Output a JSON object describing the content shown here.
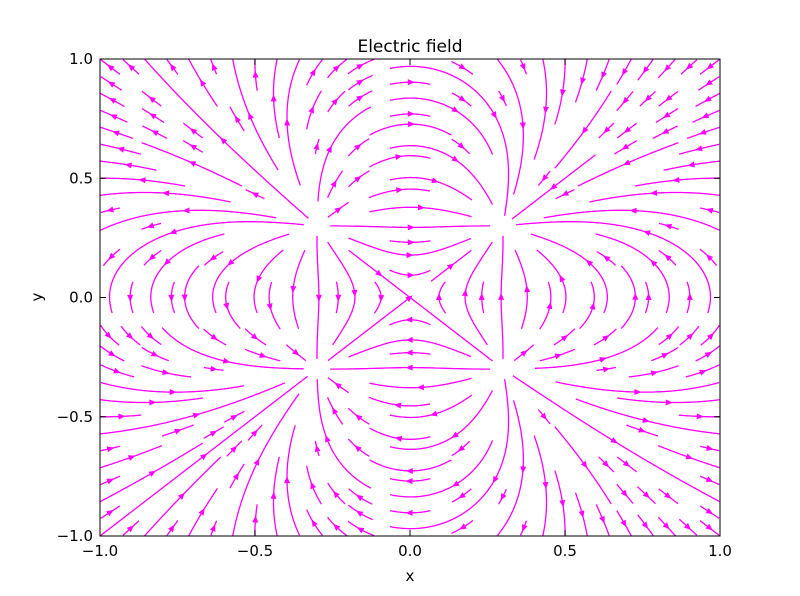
{
  "chart_data": {
    "type": "streamplot",
    "title": "Electric field",
    "xlabel": "x",
    "ylabel": "y",
    "xlim": [
      -1.0,
      1.0
    ],
    "ylim": [
      -1.0,
      1.0
    ],
    "xticks": [
      -1.0,
      -0.5,
      0.0,
      0.5,
      1.0
    ],
    "yticks": [
      -1.0,
      -0.5,
      0.0,
      0.5,
      1.0
    ],
    "xtick_labels": [
      "−1.0",
      "−0.5",
      "0.0",
      "0.5",
      "1.0"
    ],
    "ytick_labels": [
      "−1.0",
      "−0.5",
      "0.0",
      "0.5",
      "1.0"
    ],
    "grid": false,
    "line_color": "#ff00ff",
    "charges": [
      {
        "x": -0.3,
        "y": 0.3,
        "q": 1
      },
      {
        "x": 0.3,
        "y": 0.3,
        "q": -1
      },
      {
        "x": -0.3,
        "y": -0.3,
        "q": -1
      },
      {
        "x": 0.3,
        "y": -0.3,
        "q": 1
      }
    ]
  }
}
